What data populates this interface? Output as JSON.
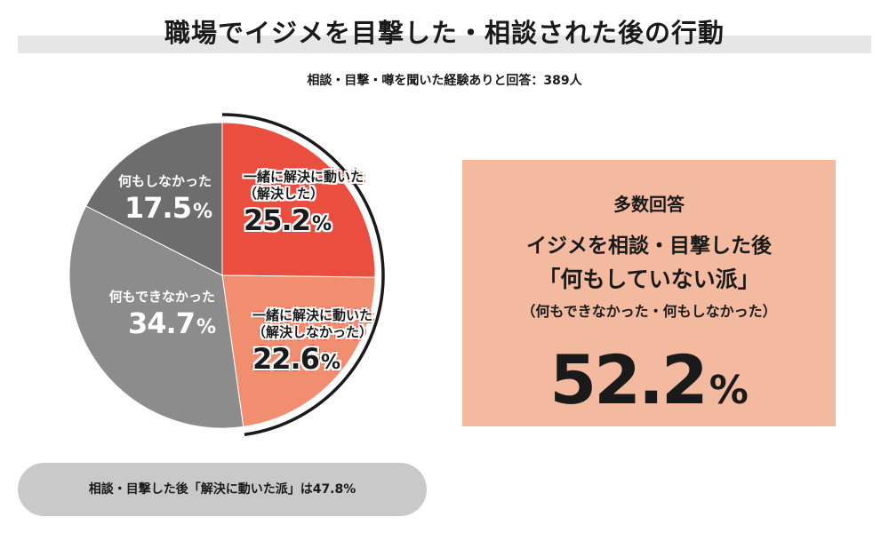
{
  "header": {
    "title": "職場でイジメを目撃した・相談された後の行動",
    "subtitle": "相談・目撃・噂を聞いた経験ありと回答：389人"
  },
  "chart_data": {
    "type": "pie",
    "title": "職場でイジメを目撃した・相談された後の行動",
    "start_angle": "12 o'clock, clockwise",
    "slices": [
      {
        "label": "一緒に解決に動いた（解決した）",
        "name_line1": "一緒に解決に動いた",
        "name_line2": "（解決した）",
        "value": 25.2,
        "display": "25.2",
        "unit": "%",
        "color": "#e94e3f"
      },
      {
        "label": "一緒に解決に動いた（解決しなかった）",
        "name_line1": "一緒に解決に動いた",
        "name_line2": "（解決しなかった）",
        "value": 22.6,
        "display": "22.6",
        "unit": "%",
        "color": "#f18e70"
      },
      {
        "label": "何もできなかった",
        "name_line1": "何もできなかった",
        "name_line2": "",
        "value": 34.7,
        "display": "34.7",
        "unit": "%",
        "color": "#8c8c8c"
      },
      {
        "label": "何もしなかった",
        "name_line1": "何もしなかった",
        "name_line2": "",
        "value": 17.5,
        "display": "17.5",
        "unit": "%",
        "color": "#6d6d6d"
      }
    ]
  },
  "summary": {
    "heading": "多数回答",
    "line1": "イジメを相談・目撃した後",
    "line2": "「何もしていない派」",
    "line3": "（何もできなかった・何もしなかった）",
    "value": "52.2",
    "unit": "%",
    "background": "#f3baa0"
  },
  "note": {
    "text": "相談・目撃した後「解決に動いた派」は47.8%"
  }
}
